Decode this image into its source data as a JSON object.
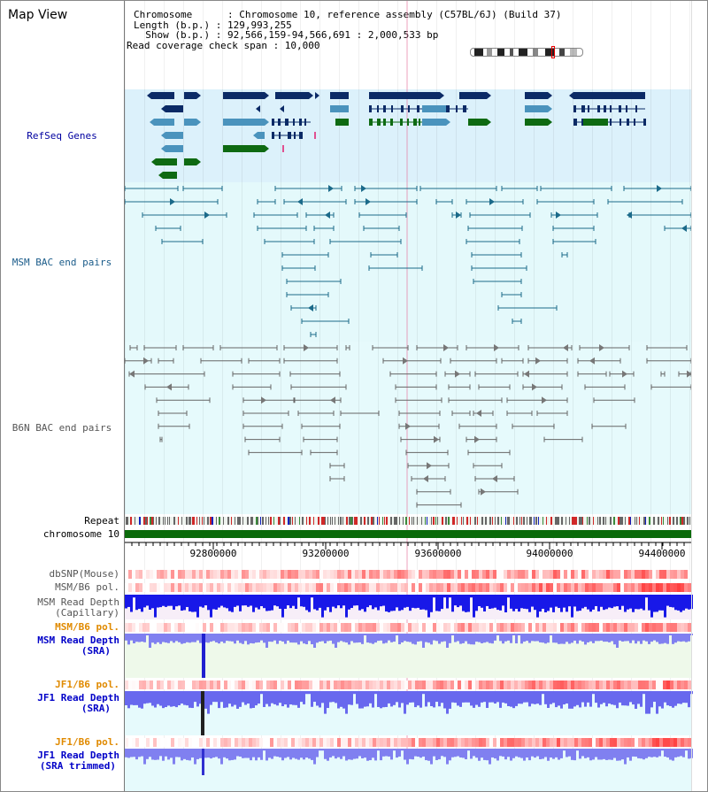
{
  "header": {
    "map_title": "Map View",
    "chromosome_line": "Chromosome      : Chromosome 10, reference assembly (C57BL/6J) (Build 37)",
    "length_line": "Length (b.p.) : 129,993,255",
    "show_line": "  Show (b.p.) : 92,566,159-94,566,691 : 2,000,533 bp",
    "coverage_line": "Read coverage check span : 10,000"
  },
  "tracks": {
    "refseq": "RefSeq Genes",
    "msm_bac": "MSM BAC end pairs",
    "b6n_bac": "B6N BAC end pairs",
    "repeat": "Repeat",
    "chromosome": "chromosome 10",
    "dbsnp": "dbSNP(Mouse)",
    "msm_b6_pol_1": "MSM/B6 pol.",
    "msm_depth_cap_1": "MSM Read Depth",
    "msm_depth_cap_2": "(Capillary)",
    "msm_b6_pol_2": "MSM/B6 pol.",
    "msm_depth_sra_1": "MSM Read Depth",
    "msm_depth_sra_2": "(SRA)",
    "jf1_b6_pol_1": "JF1/B6 pol.",
    "jf1_depth_sra_1": "JF1 Read Depth",
    "jf1_depth_sra_2": "(SRA)",
    "jf1_b6_pol_2": "JF1/B6 pol.",
    "jf1_depth_trim_1": "JF1 Read Depth",
    "jf1_depth_trim_2": "(SRA trimmed)"
  },
  "axis": {
    "ticks": [
      "92800000",
      "93200000",
      "93600000",
      "94000000",
      "94400000"
    ]
  },
  "colors": {
    "refseq_bg": "#dcf1fb",
    "msm_bg": "#e4f9fb",
    "b6n_bg": "#e6fafc",
    "gene_dark": "#0b2a66",
    "gene_mid": "#4a93bd",
    "gene_green": "#0e6a12",
    "msm_line": "#1b6a8a",
    "b6n_line": "#666666",
    "chromosome_green": "#0a6a0a",
    "depth_blue": "#0000e0",
    "depth_light": "#7878ec",
    "snp_red": "#e82020"
  }
}
